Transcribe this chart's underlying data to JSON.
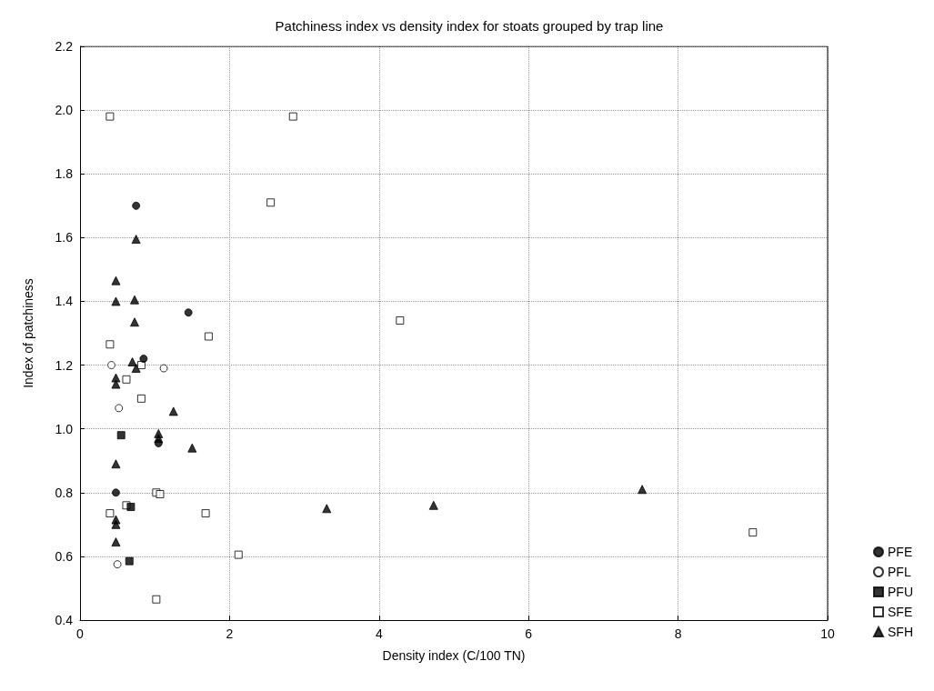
{
  "chart_data": {
    "type": "scatter",
    "title": "Patchiness index vs density index for stoats grouped by trap line",
    "xlabel": "Density index (C/100 TN)",
    "ylabel": "Index of patchiness",
    "xlim": [
      0,
      10
    ],
    "xticks": [
      0,
      2,
      4,
      6,
      8,
      10
    ],
    "ylim": [
      0.4,
      2.2
    ],
    "yticks": [
      0.4,
      0.6,
      0.8,
      {
        "value": 1,
        "label": "1.0"
      },
      1.2,
      1.4,
      1.6,
      1.8,
      {
        "value": 2,
        "label": "2.0"
      },
      2.2
    ],
    "grid": true,
    "legend": "bottom right",
    "series": [
      {
        "name": "PFE",
        "color": "#000000",
        "marker": "circle",
        "x": [
          0.75,
          1.45,
          0.85,
          1.05,
          0.48
        ],
        "values": [
          1.7,
          1.365,
          1.22,
          0.955,
          0.8
        ]
      },
      {
        "name": "PFL",
        "color": "#ffffff",
        "marker": "circle",
        "x": [
          0.42,
          1.12,
          0.52,
          0.5
        ],
        "values": [
          1.2,
          1.19,
          1.065,
          0.575
        ]
      },
      {
        "name": "PFU",
        "color": "#000000",
        "marker": "square",
        "x": [
          0.55,
          0.68,
          0.66
        ],
        "values": [
          0.98,
          0.755,
          0.585
        ]
      },
      {
        "name": "SFE",
        "color": "#ffffff",
        "marker": "square",
        "x": [
          0.4,
          2.85,
          2.55,
          4.28,
          1.72,
          0.4,
          0.82,
          0.62,
          0.82,
          1.02,
          1.07,
          0.62,
          0.4,
          1.68,
          2.12,
          1.02,
          9.0
        ],
        "values": [
          1.98,
          1.98,
          1.71,
          1.34,
          1.29,
          1.265,
          1.2,
          1.155,
          1.095,
          0.8,
          0.795,
          0.76,
          0.735,
          0.735,
          0.605,
          0.465,
          0.675
        ]
      },
      {
        "name": "SFH",
        "color": "#000000",
        "marker": "triangle",
        "x": [
          0.75,
          0.48,
          0.48,
          0.73,
          0.73,
          0.7,
          0.75,
          0.48,
          0.48,
          1.25,
          1.05,
          1.05,
          1.5,
          0.48,
          0.48,
          0.48,
          0.48,
          3.3,
          4.73,
          7.52
        ],
        "values": [
          1.595,
          1.465,
          1.4,
          1.405,
          1.335,
          1.21,
          1.19,
          1.16,
          1.14,
          1.055,
          0.985,
          0.97,
          0.94,
          0.89,
          0.715,
          0.7,
          0.645,
          0.75,
          0.76,
          0.81
        ]
      }
    ]
  }
}
